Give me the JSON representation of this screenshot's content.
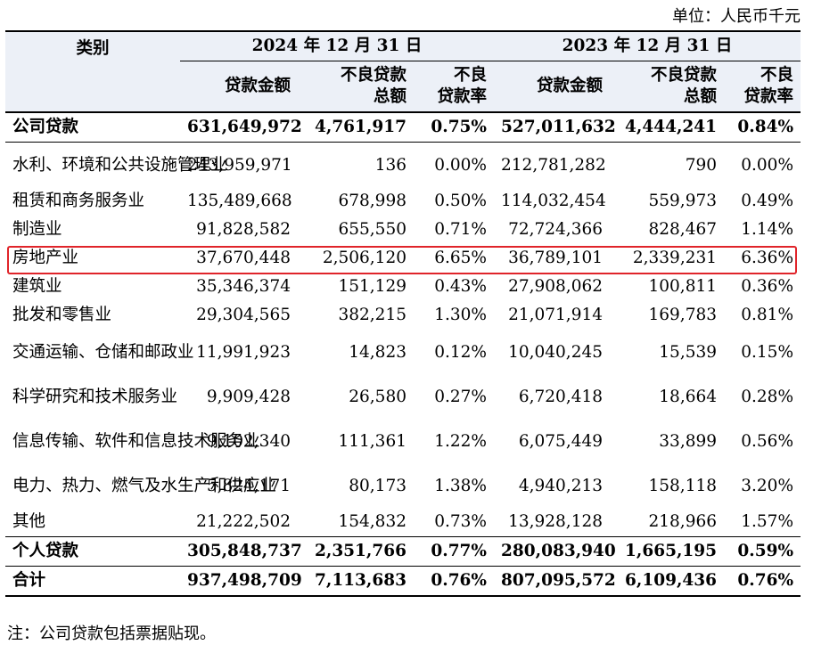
{
  "unit_label": "单位：人民币千元",
  "header": {
    "category": "类别",
    "group_2024": "2024 年 12 月 31 日",
    "group_2023": "2023 年 12 月 31 日",
    "col_amount": "贷款金额",
    "col_npl_1": "不良贷款",
    "col_npl_2": "总额",
    "col_rate_1": "不良",
    "col_rate_2": "贷款率"
  },
  "rows": [
    {
      "label": "公司贷款",
      "a24": "631,649,972",
      "n24": "4,761,917",
      "r24": "0.75%",
      "a23": "527,011,632",
      "n23": "4,444,241",
      "r23": "0.84%"
    },
    {
      "label": "水利、环境和公共设施管理业",
      "a24": "243,959,971",
      "n24": "136",
      "r24": "0.00%",
      "a23": "212,781,282",
      "n23": "790",
      "r23": "0.00%"
    },
    {
      "label": "租赁和商务服务业",
      "a24": "135,489,668",
      "n24": "678,998",
      "r24": "0.50%",
      "a23": "114,032,454",
      "n23": "559,973",
      "r23": "0.49%"
    },
    {
      "label": "制造业",
      "a24": "91,828,582",
      "n24": "655,550",
      "r24": "0.71%",
      "a23": "72,724,366",
      "n23": "828,467",
      "r23": "1.14%"
    },
    {
      "label": "房地产业",
      "a24": "37,670,448",
      "n24": "2,506,120",
      "r24": "6.65%",
      "a23": "36,789,101",
      "n23": "2,339,231",
      "r23": "6.36%"
    },
    {
      "label": "建筑业",
      "a24": "35,346,374",
      "n24": "151,129",
      "r24": "0.43%",
      "a23": "27,908,062",
      "n23": "100,811",
      "r23": "0.36%"
    },
    {
      "label": "批发和零售业",
      "a24": "29,304,565",
      "n24": "382,215",
      "r24": "1.30%",
      "a23": "21,071,914",
      "n23": "169,783",
      "r23": "0.81%"
    },
    {
      "label": "交通运输、仓储和邮政业",
      "a24": "11,991,923",
      "n24": "14,823",
      "r24": "0.12%",
      "a23": "10,040,245",
      "n23": "15,539",
      "r23": "0.15%"
    },
    {
      "label": "科学研究和技术服务业",
      "a24": "9,909,428",
      "n24": "26,580",
      "r24": "0.27%",
      "a23": "6,720,418",
      "n23": "18,664",
      "r23": "0.28%"
    },
    {
      "label": "信息传输、软件和信息技术服务业",
      "a24": "9,102,340",
      "n24": "111,361",
      "r24": "1.22%",
      "a23": "6,075,449",
      "n23": "33,899",
      "r23": "0.56%"
    },
    {
      "label": "电力、热力、燃气及水生产和供应业",
      "a24": "5,824,171",
      "n24": "80,173",
      "r24": "1.38%",
      "a23": "4,940,213",
      "n23": "158,118",
      "r23": "3.20%"
    },
    {
      "label": "其他",
      "a24": "21,222,502",
      "n24": "154,832",
      "r24": "0.73%",
      "a23": "13,928,128",
      "n23": "218,966",
      "r23": "1.57%"
    },
    {
      "label": "个人贷款",
      "a24": "305,848,737",
      "n24": "2,351,766",
      "r24": "0.77%",
      "a23": "280,083,940",
      "n23": "1,665,195",
      "r23": "0.59%"
    },
    {
      "label": "合计",
      "a24": "937,498,709",
      "n24": "7,113,683",
      "r24": "0.76%",
      "a23": "807,095,572",
      "n23": "6,109,436",
      "r23": "0.76%"
    }
  ],
  "note": "注：公司贷款包括票据贴现。",
  "highlight_color": "#e0242a",
  "header_bg": "#ecf0f7"
}
